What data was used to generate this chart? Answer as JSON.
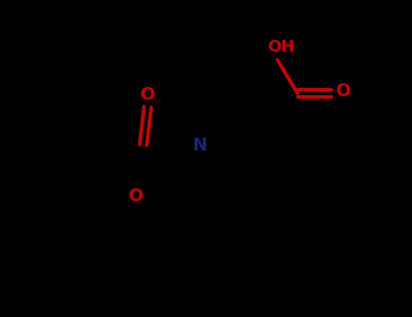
{
  "bg_color": "#000000",
  "bond_color": "#000000",
  "N_color": "#1a237e",
  "O_color": "#cc0000",
  "line_width": 2.8,
  "figsize": [
    4.55,
    3.5
  ],
  "dpi": 100,
  "xlim": [
    0,
    9
  ],
  "ylim": [
    0,
    7
  ]
}
